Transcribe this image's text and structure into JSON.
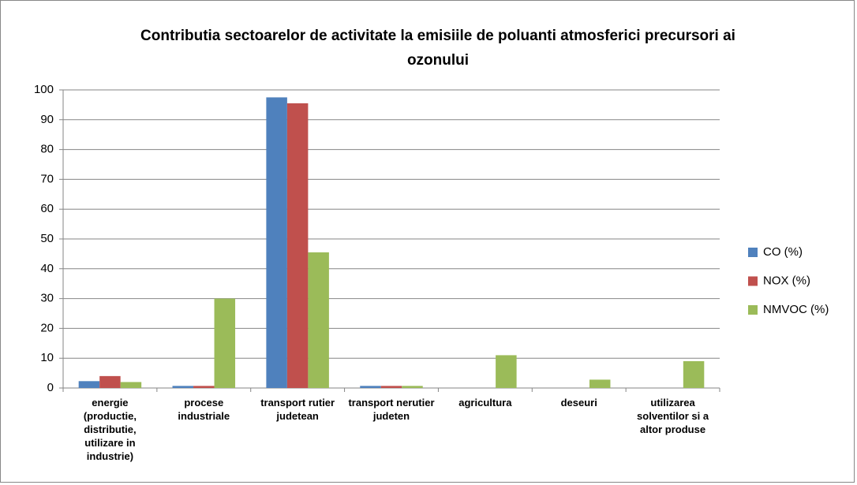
{
  "chart_data": {
    "type": "bar",
    "title": "Contributia sectoarelor de activitate la emisiile de poluanti atmosferici precursori ai ozonului",
    "categories": [
      "energie (productie, distributie, utilizare in industrie)",
      "procese industriale",
      "transport rutier judetean",
      "transport nerutier judeten",
      "agricultura",
      "deseuri",
      "utilizarea solventilor si a altor produse"
    ],
    "series": [
      {
        "name": "CO  (%)",
        "color": "#4f81bd",
        "values": [
          2.3,
          0.7,
          97.5,
          0.7,
          0,
          0,
          0
        ]
      },
      {
        "name": "NOX  (%)",
        "color": "#c0504d",
        "values": [
          4,
          0.7,
          95.5,
          0.7,
          0,
          0,
          0
        ]
      },
      {
        "name": "NMVOC  (%)",
        "color": "#9bbb59",
        "values": [
          2,
          30,
          45.5,
          0.7,
          11,
          2.8,
          9
        ]
      }
    ],
    "ylim": [
      0,
      100
    ],
    "yticks": [
      0,
      10,
      20,
      30,
      40,
      50,
      60,
      70,
      80,
      90,
      100
    ],
    "grid": true,
    "legend": "right"
  }
}
